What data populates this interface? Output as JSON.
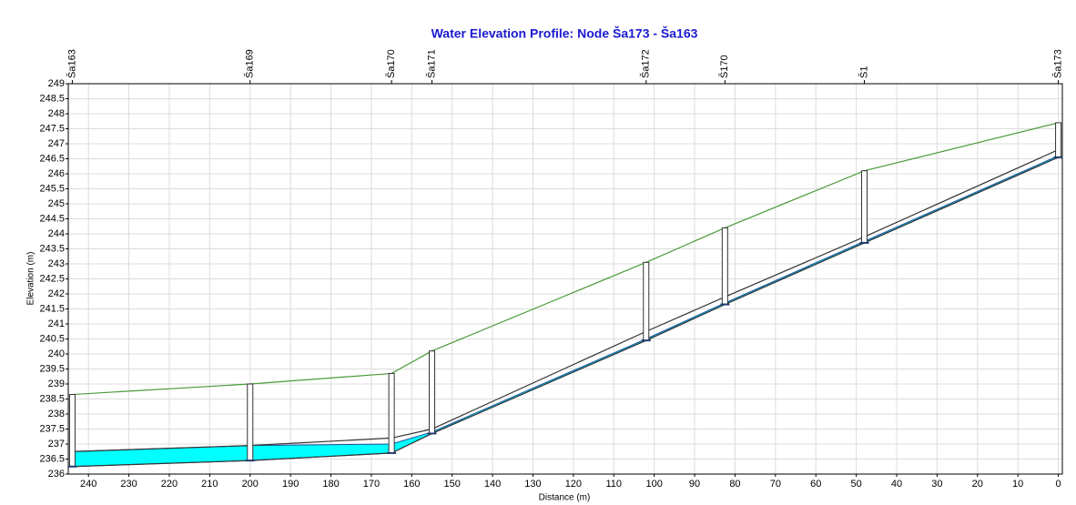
{
  "chart_data": {
    "type": "line",
    "title": "Water Elevation Profile:  Node Ša173 - Ša163",
    "x_label": "Distance (m)",
    "y_label": "Elevation (m)",
    "node_labels": [
      "Ša163",
      "Ša169",
      "Ša170",
      "Ša171",
      "Ša172",
      "Š170",
      "Š1",
      "Ša173"
    ],
    "x": [
      244,
      200,
      165,
      155,
      102,
      82.5,
      48,
      0
    ],
    "series": [
      {
        "color": "#4a9a3a",
        "values": [
          238.65,
          239.0,
          239.35,
          240.1,
          243.05,
          244.2,
          246.1,
          247.7
        ]
      },
      {
        "color": "#333333",
        "values": [
          236.75,
          236.95,
          237.2,
          237.5,
          240.75,
          241.9,
          243.9,
          246.8
        ]
      },
      {
        "color": "#333333",
        "values": [
          236.25,
          236.45,
          236.7,
          237.35,
          240.45,
          241.65,
          243.7,
          246.55
        ]
      },
      {
        "color": "#00ffff",
        "values": [
          236.75,
          236.95,
          237.0,
          237.4,
          240.5,
          241.7,
          243.75,
          246.6
        ]
      }
    ],
    "xlim": [
      245,
      -1
    ],
    "xticks": [
      240,
      230,
      220,
      210,
      200,
      190,
      180,
      170,
      160,
      150,
      140,
      130,
      120,
      110,
      100,
      90,
      80,
      70,
      60,
      50,
      40,
      30,
      20,
      10,
      0
    ],
    "ylim": [
      236,
      249
    ],
    "yticks": [
      236,
      236.5,
      237,
      237.5,
      238,
      238.5,
      239,
      239.5,
      240,
      240.5,
      241,
      241.5,
      242,
      242.5,
      243,
      243.5,
      244,
      244.5,
      245,
      245.5,
      246,
      246.5,
      247,
      247.5,
      248,
      248.5,
      249
    ],
    "grid": true
  }
}
